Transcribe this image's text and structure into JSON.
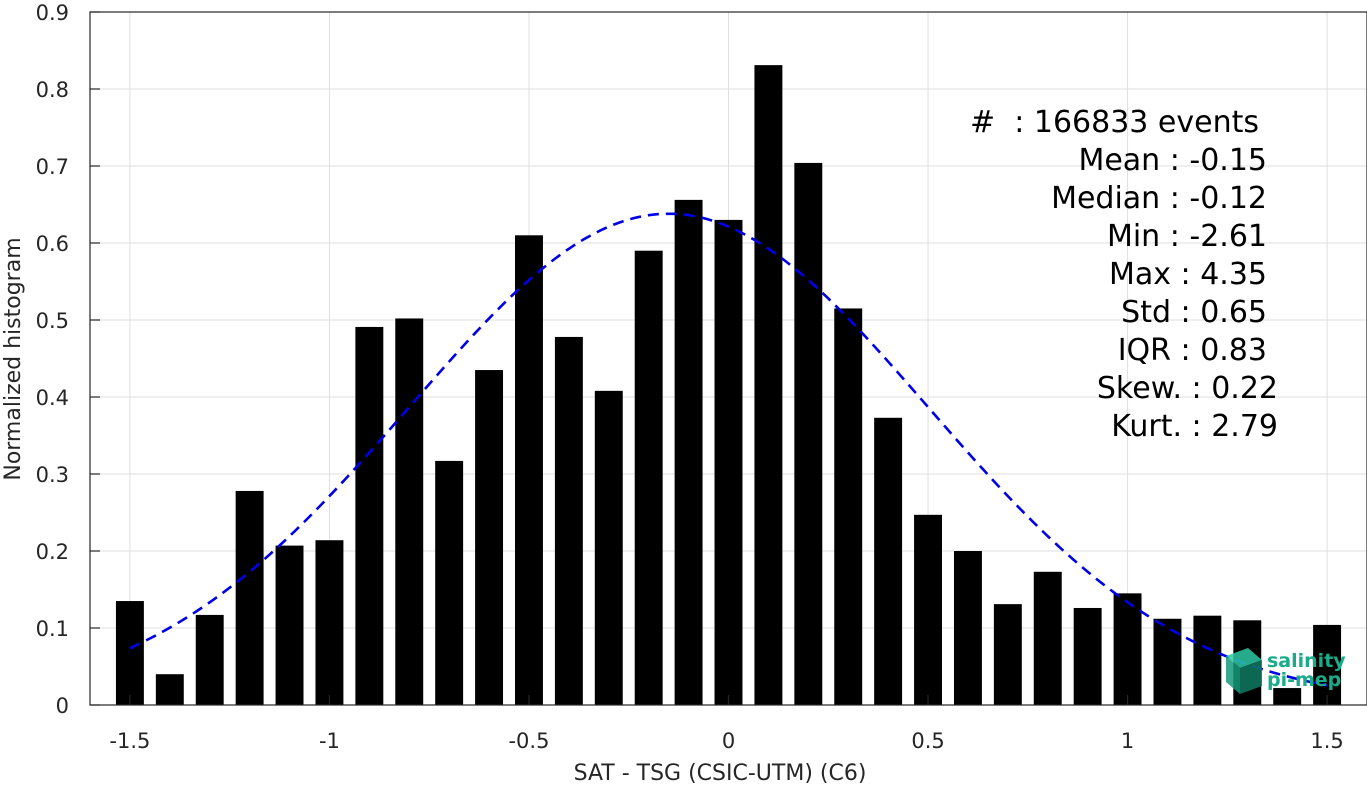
{
  "chart_data": {
    "type": "bar",
    "title": "",
    "xlabel": "SAT - TSG (CSIC-UTM) (C6)",
    "ylabel": "Normalized histogram",
    "xlim": [
      -1.6,
      1.6
    ],
    "ylim": [
      0,
      0.9
    ],
    "xticks": [
      -1.5,
      -1,
      -0.5,
      0,
      0.5,
      1,
      1.5
    ],
    "xtick_labels": [
      "-1.5",
      "-1",
      "-0.5",
      "0",
      "0.5",
      "1",
      "1.5"
    ],
    "yticks": [
      0,
      0.1,
      0.2,
      0.3,
      0.4,
      0.5,
      0.6,
      0.7,
      0.8,
      0.9
    ],
    "ytick_labels": [
      "0",
      "0.1",
      "0.2",
      "0.3",
      "0.4",
      "0.5",
      "0.6",
      "0.7",
      "0.8",
      "0.9"
    ],
    "grid": true,
    "bar_color": "#000000",
    "bar_width": 0.07,
    "bins": [
      -1.5,
      -1.4,
      -1.3,
      -1.2,
      -1.1,
      -1.0,
      -0.9,
      -0.8,
      -0.7,
      -0.6,
      -0.5,
      -0.4,
      -0.3,
      -0.2,
      -0.1,
      0.0,
      0.1,
      0.2,
      0.3,
      0.4,
      0.5,
      0.6,
      0.7,
      0.8,
      0.9,
      1.0,
      1.1,
      1.2,
      1.3,
      1.4,
      1.5
    ],
    "values": [
      0.135,
      0.04,
      0.117,
      0.278,
      0.207,
      0.214,
      0.491,
      0.502,
      0.317,
      0.435,
      0.61,
      0.478,
      0.408,
      0.59,
      0.656,
      0.63,
      0.831,
      0.704,
      0.515,
      0.373,
      0.247,
      0.2,
      0.131,
      0.173,
      0.126,
      0.145,
      0.112,
      0.116,
      0.11,
      0.022,
      0.104
    ],
    "fit_curve": {
      "style": "dashed",
      "color": "#0000e6",
      "mean": -0.15,
      "std": 0.65,
      "peak": 0.638,
      "x_range": [
        -1.5,
        1.5
      ]
    },
    "annotations": [
      "#  : 166833 events",
      "Mean : -0.15",
      "Median : -0.12",
      "Min : -2.61",
      "Max : 4.35",
      "Std : 0.65",
      "IQR : 0.83",
      "Skew. : 0.22",
      "Kurt. : 2.79"
    ]
  },
  "logo": {
    "line1": "salinity",
    "line2": "pi-mep",
    "color": "#1aab8a"
  }
}
